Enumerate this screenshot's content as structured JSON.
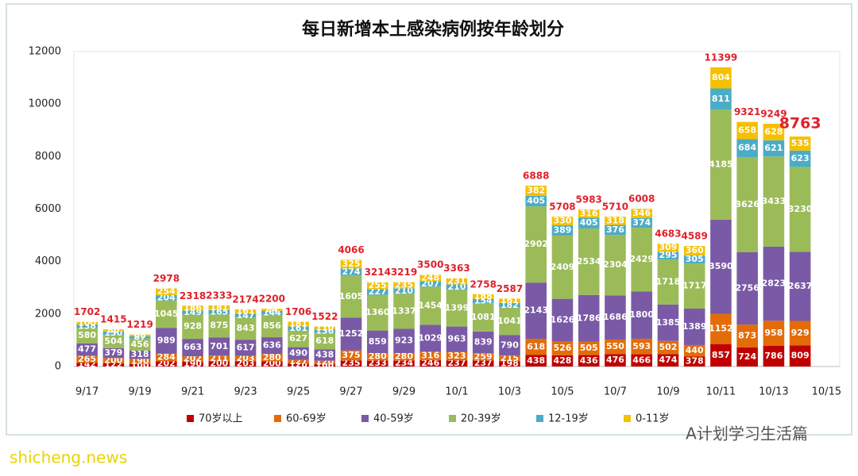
{
  "chart_data": {
    "type": "stacked_bar",
    "title": "每日新增本土感染病例按年龄划分",
    "categories": [
      "9/17",
      null,
      "9/19",
      null,
      "9/21",
      null,
      "9/23",
      null,
      "9/25",
      null,
      "9/27",
      null,
      "9/29",
      null,
      "10/1",
      null,
      "10/3",
      null,
      "10/5",
      null,
      "10/7",
      null,
      "10/9",
      null,
      "10/11",
      null,
      "10/13",
      null,
      "10/15"
    ],
    "series": [
      {
        "name": "70岁以上",
        "color": "#c00000",
        "values": [
          142,
          122,
          100,
          202,
          190,
          200,
          203,
          200,
          120,
          100,
          235,
          233,
          234,
          246,
          237,
          237,
          198,
          438,
          428,
          436,
          476,
          466,
          474,
          378,
          857,
          724,
          786,
          809,
          null
        ]
      },
      {
        "name": "60-69岁",
        "color": "#e36c09",
        "values": [
          265,
          200,
          190,
          284,
          202,
          211,
          203,
          280,
          127,
          120,
          375,
          280,
          280,
          316,
          323,
          259,
          215,
          618,
          526,
          505,
          550,
          593,
          502,
          440,
          1152,
          873,
          958,
          929,
          null
        ]
      },
      {
        "name": "40-59岁",
        "color": "#7a5aa6",
        "values": [
          477,
          379,
          318,
          989,
          663,
          701,
          617,
          636,
          490,
          438,
          1252,
          859,
          923,
          1029,
          963,
          839,
          790,
          2143,
          1626,
          1786,
          1686,
          1800,
          1385,
          1389,
          3590,
          2756,
          2823,
          2637,
          null
        ]
      },
      {
        "name": "20-39岁",
        "color": "#9bbb59",
        "values": [
          580,
          504,
          456,
          1045,
          928,
          875,
          843,
          856,
          627,
          618,
          1605,
          1360,
          1337,
          1454,
          1399,
          1081,
          1041,
          2902,
          2409,
          2534,
          2304,
          2429,
          1718,
          1717,
          4185,
          3626,
          3433,
          3230,
          null
        ]
      },
      {
        "name": "12-19岁",
        "color": "#4bacc6",
        "values": [
          138,
          130,
          87,
          204,
          149,
          165,
          147,
          144,
          161,
          136,
          274,
          227,
          210,
          207,
          210,
          154,
          182,
          405,
          389,
          405,
          376,
          374,
          295,
          305,
          811,
          684,
          621,
          623,
          null
        ]
      },
      {
        "name": "0-11岁",
        "color": "#f5c000",
        "values": [
          100,
          80,
          68,
          254,
          186,
          181,
          161,
          84,
          181,
          110,
          325,
          255,
          235,
          248,
          231,
          188,
          161,
          382,
          330,
          316,
          318,
          346,
          309,
          360,
          804,
          658,
          628,
          535,
          null
        ]
      }
    ],
    "totals": [
      1702,
      1415,
      1219,
      2978,
      2318,
      2333,
      2174,
      2200,
      1706,
      1522,
      4066,
      3214,
      3219,
      3500,
      3363,
      2758,
      2587,
      6888,
      5708,
      5983,
      5710,
      6008,
      4683,
      4589,
      11399,
      9321,
      9249,
      8763,
      null
    ],
    "ylim": [
      0,
      12000
    ],
    "yticks": [
      0,
      2000,
      4000,
      6000,
      8000,
      10000,
      12000
    ],
    "grid": false,
    "legend": "bottom"
  },
  "watermarks": [
    "A计划学习生活篇",
    "shicheng.news"
  ]
}
